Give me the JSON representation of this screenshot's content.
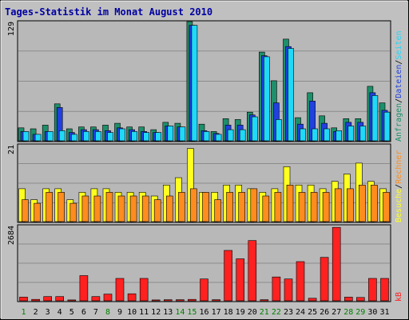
{
  "chart_data": {
    "type": "bar",
    "title": "Tages-Statistik im Monat August 2010",
    "x": [
      1,
      2,
      3,
      4,
      5,
      6,
      7,
      8,
      9,
      10,
      11,
      12,
      13,
      14,
      15,
      16,
      17,
      18,
      19,
      20,
      21,
      22,
      23,
      24,
      25,
      26,
      27,
      28,
      29,
      30,
      31
    ],
    "x_colors": [
      "#007f00",
      "#000000",
      "#000000",
      "#000000",
      "#000000",
      "#000000",
      "#000000",
      "#007f00",
      "#000000",
      "#000000",
      "#000000",
      "#000000",
      "#000000",
      "#007f00",
      "#007f00",
      "#000000",
      "#000000",
      "#000000",
      "#000000",
      "#000000",
      "#007f00",
      "#007f00",
      "#000000",
      "#000000",
      "#000000",
      "#000000",
      "#000000",
      "#007f00",
      "#007f00",
      "#000000",
      "#000000"
    ],
    "grid": true,
    "panels": [
      {
        "ymax": 129,
        "ylim": [
          0,
          129
        ],
        "series": [
          {
            "name": "Anfragen",
            "color": "#1d8f6a",
            "values": [
              14,
              13,
              17,
              40,
              13,
              15,
              15,
              17,
              19,
              15,
              15,
              12,
              20,
              19,
              129,
              18,
              10,
              24,
              23,
              31,
              96,
              65,
              110,
              25,
              52,
              27,
              14,
              24,
              24,
              59,
              41
            ]
          },
          {
            "name": "Dateien",
            "color": "#2040e0",
            "values": [
              10,
              7,
              10,
              36,
              9,
              12,
              12,
              11,
              14,
              12,
              10,
              9,
              16,
              15,
              125,
              11,
              8,
              17,
              17,
              28,
              92,
              41,
              102,
              18,
              43,
              19,
              10,
              20,
              20,
              52,
              33
            ]
          },
          {
            "name": "Seiten",
            "color": "#20d8f8",
            "values": [
              10,
              7,
              10,
              11,
              7,
              10,
              10,
              9,
              13,
              10,
              9,
              9,
              16,
              15,
              125,
              10,
              7,
              12,
              12,
              26,
              91,
              23,
              100,
              13,
              13,
              13,
              11,
              16,
              16,
              49,
              31
            ]
          }
        ]
      },
      {
        "ymax": 21,
        "ylim": [
          0,
          21
        ],
        "series": [
          {
            "name": "Besuche",
            "color": "#ffff20",
            "values": [
              9,
              6,
              9,
              9,
              6,
              8,
              9,
              9,
              8,
              8,
              8,
              7,
              10,
              12,
              20,
              8,
              8,
              10,
              10,
              9,
              8,
              9,
              15,
              10,
              10,
              9,
              11,
              13,
              16,
              11,
              9
            ]
          },
          {
            "name": "Rechner",
            "color": "#ff8c1e",
            "values": [
              6,
              5,
              8,
              8,
              5,
              7,
              7,
              8,
              7,
              7,
              7,
              6,
              7,
              8,
              9,
              8,
              6,
              8,
              8,
              9,
              7,
              8,
              10,
              8,
              8,
              8,
              9,
              9,
              10,
              10,
              8
            ]
          }
        ]
      },
      {
        "ymax": 2684,
        "ylim": [
          0,
          2684
        ],
        "series": [
          {
            "name": "kB",
            "color": "#ff2020",
            "values": [
              130,
              50,
              150,
              150,
              30,
              900,
              150,
              240,
              800,
              250,
              800,
              30,
              40,
              40,
              50,
              780,
              40,
              1800,
              1500,
              2150,
              40,
              850,
              780,
              1400,
              90,
              1550,
              2620,
              130,
              120,
              800,
              800
            ]
          }
        ]
      }
    ],
    "side_label": {
      "top": {
        "parts": [
          {
            "text": "Anfragen",
            "color": "#1d8f6a"
          },
          {
            "text": "/",
            "color": "#000000"
          },
          {
            "text": "Dateien",
            "color": "#2040e0"
          },
          {
            "text": "/",
            "color": "#000000"
          },
          {
            "text": "Seiten",
            "color": "#20d8f8"
          }
        ]
      },
      "middle": {
        "parts": [
          {
            "text": "Besuche",
            "color": "#ffff20"
          },
          {
            "text": "/",
            "color": "#000000"
          },
          {
            "text": "Rechner",
            "color": "#ff8c1e"
          }
        ]
      },
      "bottom": {
        "parts": [
          {
            "text": "kB",
            "color": "#ff2020"
          }
        ]
      }
    }
  }
}
